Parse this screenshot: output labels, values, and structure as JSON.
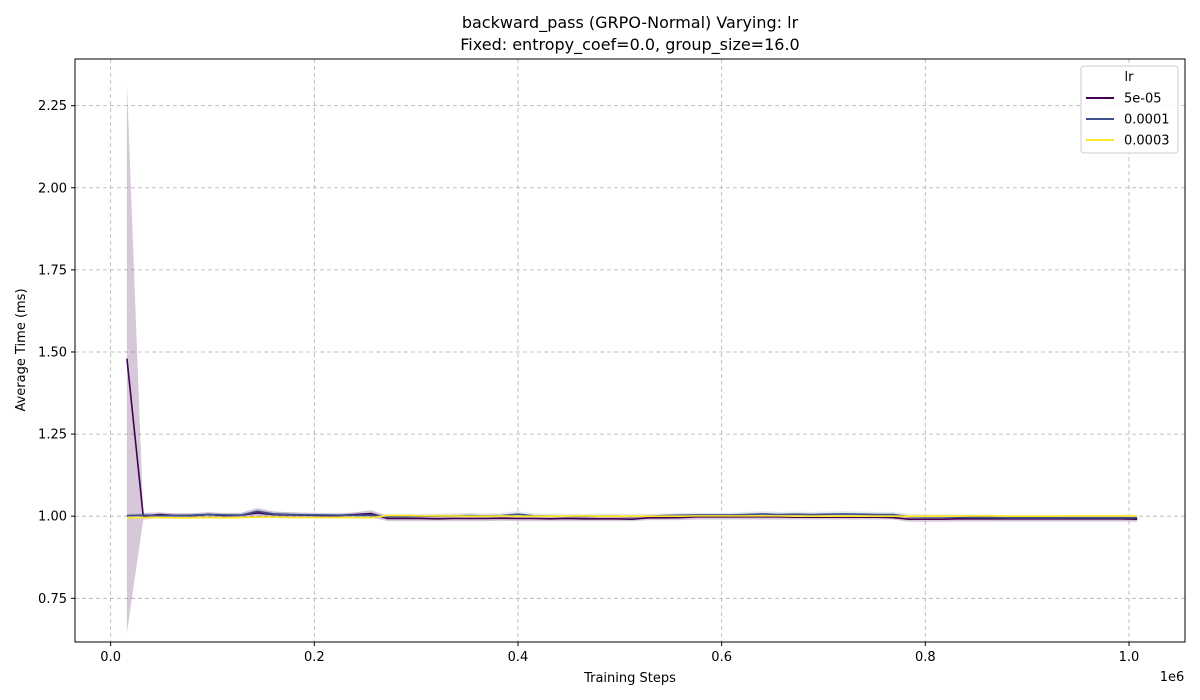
{
  "chart_data": {
    "type": "line",
    "title": "backward_pass (GRPO-Normal) Varying: lr",
    "subtitle": "Fixed: entropy_coef=0.0, group_size=16.0",
    "xlabel": "Training Steps",
    "ylabel": "Average Time (ms)",
    "x_multiplier_label": "1e6",
    "xlim": [
      -0.035,
      1.055
    ],
    "ylim": [
      0.617,
      2.392
    ],
    "x_ticks": [
      0.0,
      0.2,
      0.4,
      0.6,
      0.8,
      1.0
    ],
    "x_tick_labels": [
      "0.0",
      "0.2",
      "0.4",
      "0.6",
      "0.8",
      "1.0"
    ],
    "y_ticks": [
      0.75,
      1.0,
      1.25,
      1.5,
      1.75,
      2.0,
      2.25
    ],
    "y_tick_labels": [
      "0.75",
      "1.00",
      "1.25",
      "1.50",
      "1.75",
      "2.00",
      "2.25"
    ],
    "grid": true,
    "legend": {
      "title": "lr",
      "position": "top-right"
    },
    "x": [
      0.016,
      0.032,
      0.048,
      0.064,
      0.08,
      0.096,
      0.112,
      0.128,
      0.144,
      0.16,
      0.176,
      0.192,
      0.208,
      0.224,
      0.24,
      0.256,
      0.272,
      0.288,
      0.304,
      0.32,
      0.336,
      0.352,
      0.368,
      0.384,
      0.4,
      0.416,
      0.432,
      0.448,
      0.464,
      0.48,
      0.496,
      0.512,
      0.528,
      0.544,
      0.56,
      0.576,
      0.592,
      0.608,
      0.624,
      0.64,
      0.656,
      0.672,
      0.688,
      0.704,
      0.72,
      0.736,
      0.752,
      0.768,
      0.784,
      0.8,
      0.816,
      0.832,
      0.848,
      0.864,
      0.88,
      0.896,
      0.912,
      0.928,
      0.944,
      0.96,
      0.976,
      0.992,
      1.008
    ],
    "series": [
      {
        "name": "5e-05",
        "color": "#440154",
        "band_color": "#440154",
        "values": [
          1.48,
          1.0,
          1.005,
          1.002,
          1.002,
          1.005,
          1.002,
          1.003,
          1.01,
          1.005,
          1.004,
          1.003,
          1.002,
          1.002,
          1.005,
          1.008,
          0.993,
          0.993,
          0.993,
          0.992,
          0.993,
          0.993,
          0.993,
          0.994,
          0.993,
          0.993,
          0.992,
          0.993,
          0.992,
          0.992,
          0.992,
          0.991,
          0.995,
          0.995,
          0.996,
          0.998,
          0.998,
          0.998,
          0.998,
          0.998,
          0.998,
          0.997,
          0.997,
          0.997,
          0.997,
          0.997,
          0.997,
          0.996,
          0.991,
          0.991,
          0.991,
          0.992,
          0.992,
          0.992,
          0.992,
          0.992,
          0.992,
          0.992,
          0.992,
          0.992,
          0.992,
          0.992,
          0.991
        ],
        "lower": [
          0.645,
          0.99,
          0.995,
          0.995,
          0.995,
          0.995,
          0.995,
          0.995,
          0.996,
          0.996,
          0.996,
          0.996,
          0.996,
          0.996,
          0.996,
          0.996,
          0.985,
          0.985,
          0.985,
          0.985,
          0.985,
          0.985,
          0.985,
          0.986,
          0.985,
          0.985,
          0.985,
          0.985,
          0.985,
          0.985,
          0.985,
          0.985,
          0.988,
          0.988,
          0.988,
          0.99,
          0.99,
          0.99,
          0.99,
          0.99,
          0.99,
          0.99,
          0.99,
          0.99,
          0.99,
          0.99,
          0.99,
          0.99,
          0.983,
          0.983,
          0.983,
          0.984,
          0.984,
          0.984,
          0.984,
          0.984,
          0.984,
          0.984,
          0.984,
          0.984,
          0.984,
          0.984,
          0.983
        ],
        "upper": [
          2.315,
          1.01,
          1.012,
          1.009,
          1.009,
          1.012,
          1.009,
          1.01,
          1.022,
          1.014,
          1.012,
          1.01,
          1.008,
          1.008,
          1.012,
          1.018,
          1.0,
          1.0,
          1.0,
          0.999,
          1.0,
          1.0,
          1.0,
          1.001,
          1.0,
          1.0,
          0.999,
          1.0,
          0.999,
          0.999,
          0.999,
          0.998,
          1.002,
          1.002,
          1.004,
          1.006,
          1.006,
          1.006,
          1.006,
          1.006,
          1.006,
          1.004,
          1.004,
          1.004,
          1.004,
          1.004,
          1.004,
          1.002,
          0.998,
          0.998,
          0.998,
          0.999,
          0.999,
          0.999,
          0.999,
          0.999,
          0.999,
          0.999,
          0.999,
          0.999,
          0.999,
          0.999,
          0.998
        ]
      },
      {
        "name": "0.0001",
        "color": "#3b528b",
        "band_color": "#8a93b0",
        "values": [
          1.002,
          1.003,
          1.002,
          1.002,
          1.003,
          1.005,
          1.004,
          1.003,
          1.015,
          1.007,
          1.005,
          1.004,
          1.004,
          1.003,
          1.003,
          1.003,
          0.998,
          0.998,
          0.999,
          1.0,
          1.001,
          1.002,
          1.001,
          1.002,
          1.006,
          1.001,
          1.0,
          0.999,
          0.999,
          1.0,
          1.0,
          0.999,
          1.0,
          1.002,
          1.003,
          1.004,
          1.004,
          1.004,
          1.005,
          1.007,
          1.005,
          1.006,
          1.005,
          1.006,
          1.007,
          1.006,
          1.005,
          1.005,
          0.999,
          0.998,
          0.998,
          0.997,
          0.996,
          0.996,
          0.995,
          0.995,
          0.995,
          0.995,
          0.995,
          0.995,
          0.995,
          0.995,
          0.995
        ],
        "lower": [
          0.996,
          0.997,
          0.996,
          0.996,
          0.997,
          0.998,
          0.997,
          0.996,
          1.003,
          0.999,
          0.998,
          0.997,
          0.997,
          0.996,
          0.996,
          0.996,
          0.99,
          0.99,
          0.991,
          0.992,
          0.993,
          0.994,
          0.993,
          0.994,
          0.997,
          0.993,
          0.992,
          0.991,
          0.991,
          0.992,
          0.992,
          0.991,
          0.993,
          0.995,
          0.996,
          0.997,
          0.997,
          0.997,
          0.997,
          0.999,
          0.997,
          0.998,
          0.997,
          0.998,
          0.999,
          0.998,
          0.997,
          0.997,
          0.991,
          0.99,
          0.99,
          0.989,
          0.988,
          0.988,
          0.987,
          0.987,
          0.987,
          0.987,
          0.987,
          0.987,
          0.987,
          0.987,
          0.987
        ],
        "upper": [
          1.008,
          1.009,
          1.008,
          1.008,
          1.009,
          1.012,
          1.011,
          1.01,
          1.027,
          1.015,
          1.012,
          1.011,
          1.011,
          1.01,
          1.01,
          1.01,
          1.006,
          1.006,
          1.007,
          1.008,
          1.009,
          1.01,
          1.009,
          1.01,
          1.015,
          1.009,
          1.008,
          1.007,
          1.007,
          1.008,
          1.008,
          1.007,
          1.007,
          1.009,
          1.01,
          1.011,
          1.011,
          1.011,
          1.013,
          1.015,
          1.013,
          1.014,
          1.013,
          1.014,
          1.015,
          1.014,
          1.013,
          1.013,
          1.007,
          1.006,
          1.006,
          1.005,
          1.004,
          1.004,
          1.003,
          1.003,
          1.003,
          1.003,
          1.003,
          1.003,
          1.003,
          1.003,
          1.003
        ]
      },
      {
        "name": "0.0003",
        "color": "#fde725",
        "band_color": "#fde725",
        "values": [
          0.995,
          0.996,
          0.996,
          0.995,
          0.995,
          0.996,
          0.995,
          0.996,
          0.997,
          0.997,
          0.996,
          0.996,
          0.996,
          0.996,
          0.996,
          0.995,
          1.002,
          1.002,
          1.001,
          1.001,
          1.001,
          1.0,
          1.0,
          1.001,
          1.0,
          1.0,
          1.0,
          1.0,
          1.001,
          1.0,
          1.0,
          1.0,
          1.0,
          1.0,
          1.0,
          1.001,
          1.001,
          1.001,
          1.001,
          1.001,
          1.001,
          1.0,
          1.0,
          1.0,
          1.0,
          1.0,
          1.0,
          1.0,
          1.0,
          1.0,
          1.0,
          1.0,
          1.001,
          1.001,
          1.0,
          1.0,
          1.0,
          1.0,
          1.001,
          1.001,
          1.001,
          1.001,
          1.001
        ],
        "lower": [
          0.992,
          0.993,
          0.993,
          0.992,
          0.992,
          0.993,
          0.992,
          0.993,
          0.994,
          0.994,
          0.993,
          0.993,
          0.993,
          0.993,
          0.993,
          0.992,
          0.998,
          0.998,
          0.997,
          0.997,
          0.997,
          0.996,
          0.996,
          0.997,
          0.996,
          0.996,
          0.996,
          0.996,
          0.997,
          0.996,
          0.996,
          0.996,
          0.996,
          0.996,
          0.996,
          0.997,
          0.997,
          0.997,
          0.997,
          0.997,
          0.997,
          0.996,
          0.996,
          0.996,
          0.996,
          0.996,
          0.996,
          0.996,
          0.996,
          0.996,
          0.996,
          0.996,
          0.997,
          0.997,
          0.996,
          0.996,
          0.996,
          0.996,
          0.997,
          0.997,
          0.997,
          0.997,
          0.997
        ],
        "upper": [
          0.998,
          0.999,
          0.999,
          0.998,
          0.998,
          0.999,
          0.998,
          0.999,
          1.0,
          1.0,
          0.999,
          0.999,
          0.999,
          0.999,
          0.999,
          0.998,
          1.006,
          1.006,
          1.005,
          1.005,
          1.005,
          1.004,
          1.004,
          1.005,
          1.004,
          1.004,
          1.004,
          1.004,
          1.005,
          1.004,
          1.004,
          1.004,
          1.004,
          1.004,
          1.004,
          1.005,
          1.005,
          1.005,
          1.005,
          1.005,
          1.005,
          1.004,
          1.004,
          1.004,
          1.004,
          1.004,
          1.004,
          1.004,
          1.004,
          1.004,
          1.004,
          1.004,
          1.005,
          1.005,
          1.004,
          1.004,
          1.004,
          1.004,
          1.005,
          1.005,
          1.005,
          1.005,
          1.005
        ]
      }
    ]
  }
}
